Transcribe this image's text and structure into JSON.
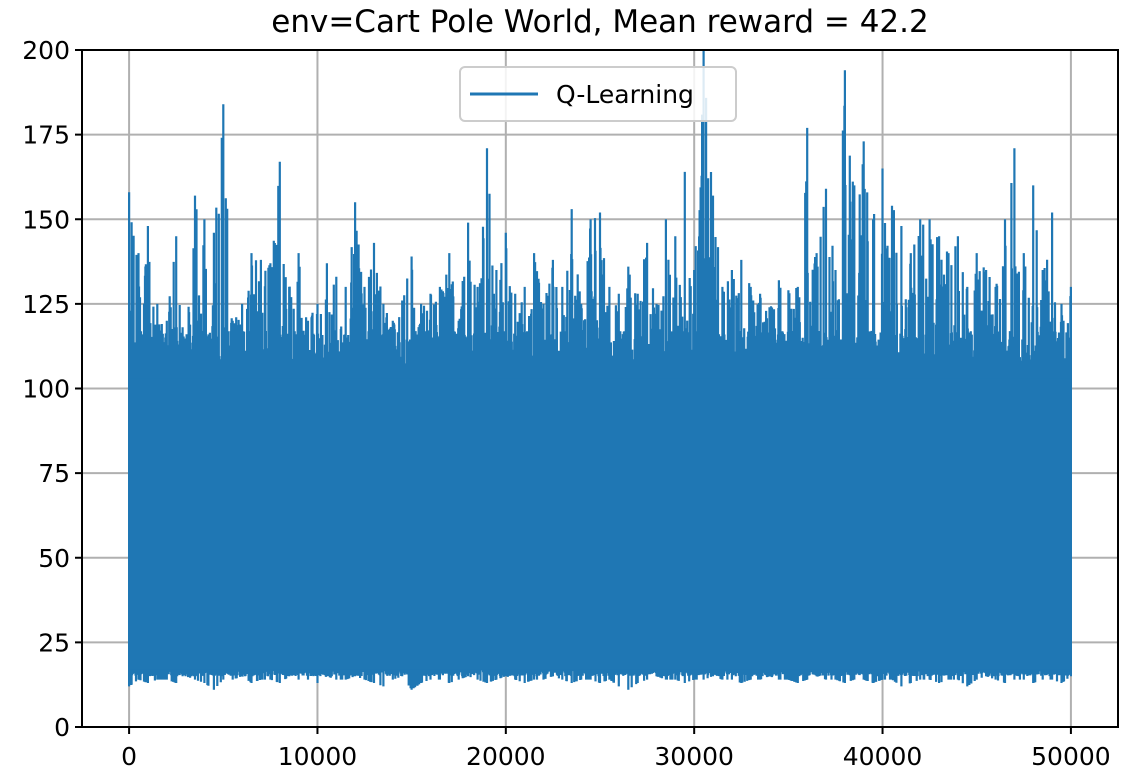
{
  "chart_data": {
    "type": "line",
    "title": "env=Cart Pole World, Mean reward = 42.2",
    "xlabel": "",
    "ylabel": "",
    "xlim": [
      -2500,
      52500
    ],
    "ylim": [
      0,
      200
    ],
    "grid": true,
    "legend_position": "upper-center",
    "series_color": "#1f77b4",
    "x_ticks": [
      0,
      10000,
      20000,
      30000,
      40000,
      50000
    ],
    "x_tick_labels": [
      "0",
      "10000",
      "20000",
      "30000",
      "40000",
      "50000"
    ],
    "y_ticks": [
      0,
      25,
      50,
      75,
      100,
      125,
      150,
      175,
      200
    ],
    "y_tick_labels": [
      "0",
      "25",
      "50",
      "75",
      "100",
      "125",
      "150",
      "175",
      "200"
    ],
    "series": [
      {
        "name": "Q-Learning",
        "summary": {
          "episodes": 50000,
          "mean": 42.2,
          "min_approx": 10,
          "max_approx": 200,
          "typical_upper_band": 115,
          "typical_lower_band": 15
        },
        "envelope": {
          "x": [
            0,
            500,
            1000,
            1500,
            2000,
            2500,
            3000,
            3500,
            4000,
            4500,
            5000,
            5500,
            6000,
            6500,
            7000,
            7500,
            8000,
            8500,
            9000,
            9500,
            10000,
            10500,
            11000,
            11500,
            12000,
            12500,
            13000,
            13500,
            14000,
            14500,
            15000,
            15500,
            16000,
            16500,
            17000,
            17500,
            18000,
            18500,
            19000,
            19500,
            20000,
            20500,
            21000,
            21500,
            22000,
            22500,
            23000,
            23500,
            24000,
            24500,
            25000,
            25500,
            26000,
            26500,
            27000,
            27500,
            28000,
            28500,
            29000,
            29500,
            30000,
            30500,
            31000,
            31500,
            32000,
            32500,
            33000,
            33500,
            34000,
            34500,
            35000,
            35500,
            36000,
            36500,
            37000,
            37500,
            38000,
            38500,
            39000,
            39500,
            40000,
            40500,
            41000,
            41500,
            42000,
            42500,
            43000,
            43500,
            44000,
            44500,
            45000,
            45500,
            46000,
            46500,
            47000,
            47500,
            48000,
            48500,
            49000,
            49500,
            50000
          ],
          "max": [
            158,
            140,
            148,
            125,
            120,
            145,
            110,
            157,
            150,
            146,
            184,
            120,
            125,
            140,
            138,
            137,
            167,
            130,
            140,
            120,
            125,
            137,
            133,
            130,
            155,
            130,
            143,
            125,
            120,
            126,
            139,
            125,
            128,
            130,
            140,
            120,
            149,
            130,
            171,
            135,
            146,
            128,
            130,
            140,
            125,
            138,
            130,
            153,
            125,
            150,
            152,
            130,
            128,
            136,
            128,
            143,
            125,
            150,
            145,
            164,
            135,
            200,
            157,
            130,
            135,
            138,
            130,
            128,
            124,
            132,
            129,
            130,
            177,
            140,
            159,
            135,
            194,
            160,
            173,
            150,
            165,
            154,
            148,
            140,
            150,
            150,
            145,
            140,
            145,
            130,
            140,
            135,
            130,
            150,
            171,
            140,
            160,
            135,
            152,
            125,
            130
          ],
          "min": [
            12,
            14,
            13,
            14,
            14,
            13,
            15,
            14,
            13,
            11,
            14,
            14,
            15,
            13,
            14,
            14,
            13,
            15,
            14,
            14,
            13,
            15,
            14,
            14,
            15,
            14,
            13,
            12,
            14,
            15,
            11,
            13,
            14,
            14,
            13,
            14,
            15,
            14,
            13,
            14,
            15,
            14,
            13,
            14,
            14,
            15,
            14,
            13,
            14,
            14,
            13,
            14,
            12,
            11,
            13,
            14,
            15,
            14,
            14,
            13,
            14,
            14,
            15,
            14,
            14,
            13,
            14,
            14,
            15,
            14,
            14,
            13,
            14,
            15,
            14,
            14,
            13,
            14,
            14,
            13,
            14,
            14,
            12,
            13,
            14,
            14,
            13,
            14,
            14,
            12,
            14,
            15,
            14,
            13,
            14,
            14,
            13,
            14,
            14,
            13,
            15
          ]
        }
      }
    ]
  }
}
